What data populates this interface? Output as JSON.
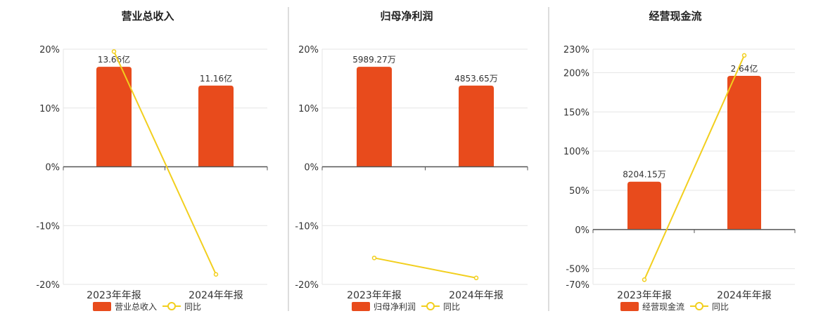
{
  "colors": {
    "bar": "#E84B1C",
    "line": "#F2CF1E",
    "grid": "#e6e6e6",
    "axis": "#555555",
    "divider": "#bbbbbb"
  },
  "chart_data": [
    {
      "type": "bar",
      "title": "营业总收入",
      "categories": [
        "2023年年报",
        "2024年年报"
      ],
      "ylim": [
        -20,
        20
      ],
      "yticks": [
        20,
        10,
        0,
        -10,
        -20
      ],
      "ytick_labels": [
        "20%",
        "10%",
        "0%",
        "-10%",
        "-20%"
      ],
      "series": [
        {
          "name": "营业总收入",
          "type": "bar",
          "values": [
            17.0,
            13.8
          ],
          "labels": [
            "13.66亿",
            "11.16亿"
          ]
        },
        {
          "name": "同比",
          "type": "line",
          "values": [
            19.6,
            -18.3
          ]
        }
      ],
      "legend": "bottom"
    },
    {
      "type": "bar",
      "title": "归母净利润",
      "categories": [
        "2023年年报",
        "2024年年报"
      ],
      "ylim": [
        -20,
        20
      ],
      "yticks": [
        20,
        10,
        0,
        -10,
        -20
      ],
      "ytick_labels": [
        "20%",
        "10%",
        "0%",
        "-10%",
        "-20%"
      ],
      "series": [
        {
          "name": "归母净利润",
          "type": "bar",
          "values": [
            17.0,
            13.8
          ],
          "labels": [
            "5989.27万",
            "4853.65万"
          ]
        },
        {
          "name": "同比",
          "type": "line",
          "values": [
            -15.5,
            -18.9
          ]
        }
      ],
      "legend": "bottom"
    },
    {
      "type": "bar",
      "title": "经营现金流",
      "categories": [
        "2023年年报",
        "2024年年报"
      ],
      "ylim": [
        -70,
        230
      ],
      "yticks": [
        230,
        200,
        150,
        100,
        50,
        0,
        -50,
        -70
      ],
      "ytick_labels": [
        "230%",
        "200%",
        "150%",
        "100%",
        "50%",
        "0%",
        "-50%",
        "-70%"
      ],
      "series": [
        {
          "name": "经营现金流",
          "type": "bar",
          "values": [
            61,
            196
          ],
          "labels": [
            "8204.15万",
            "2.64亿"
          ]
        },
        {
          "name": "同比",
          "type": "line",
          "values": [
            -64,
            222
          ]
        }
      ],
      "legend": "bottom"
    }
  ]
}
